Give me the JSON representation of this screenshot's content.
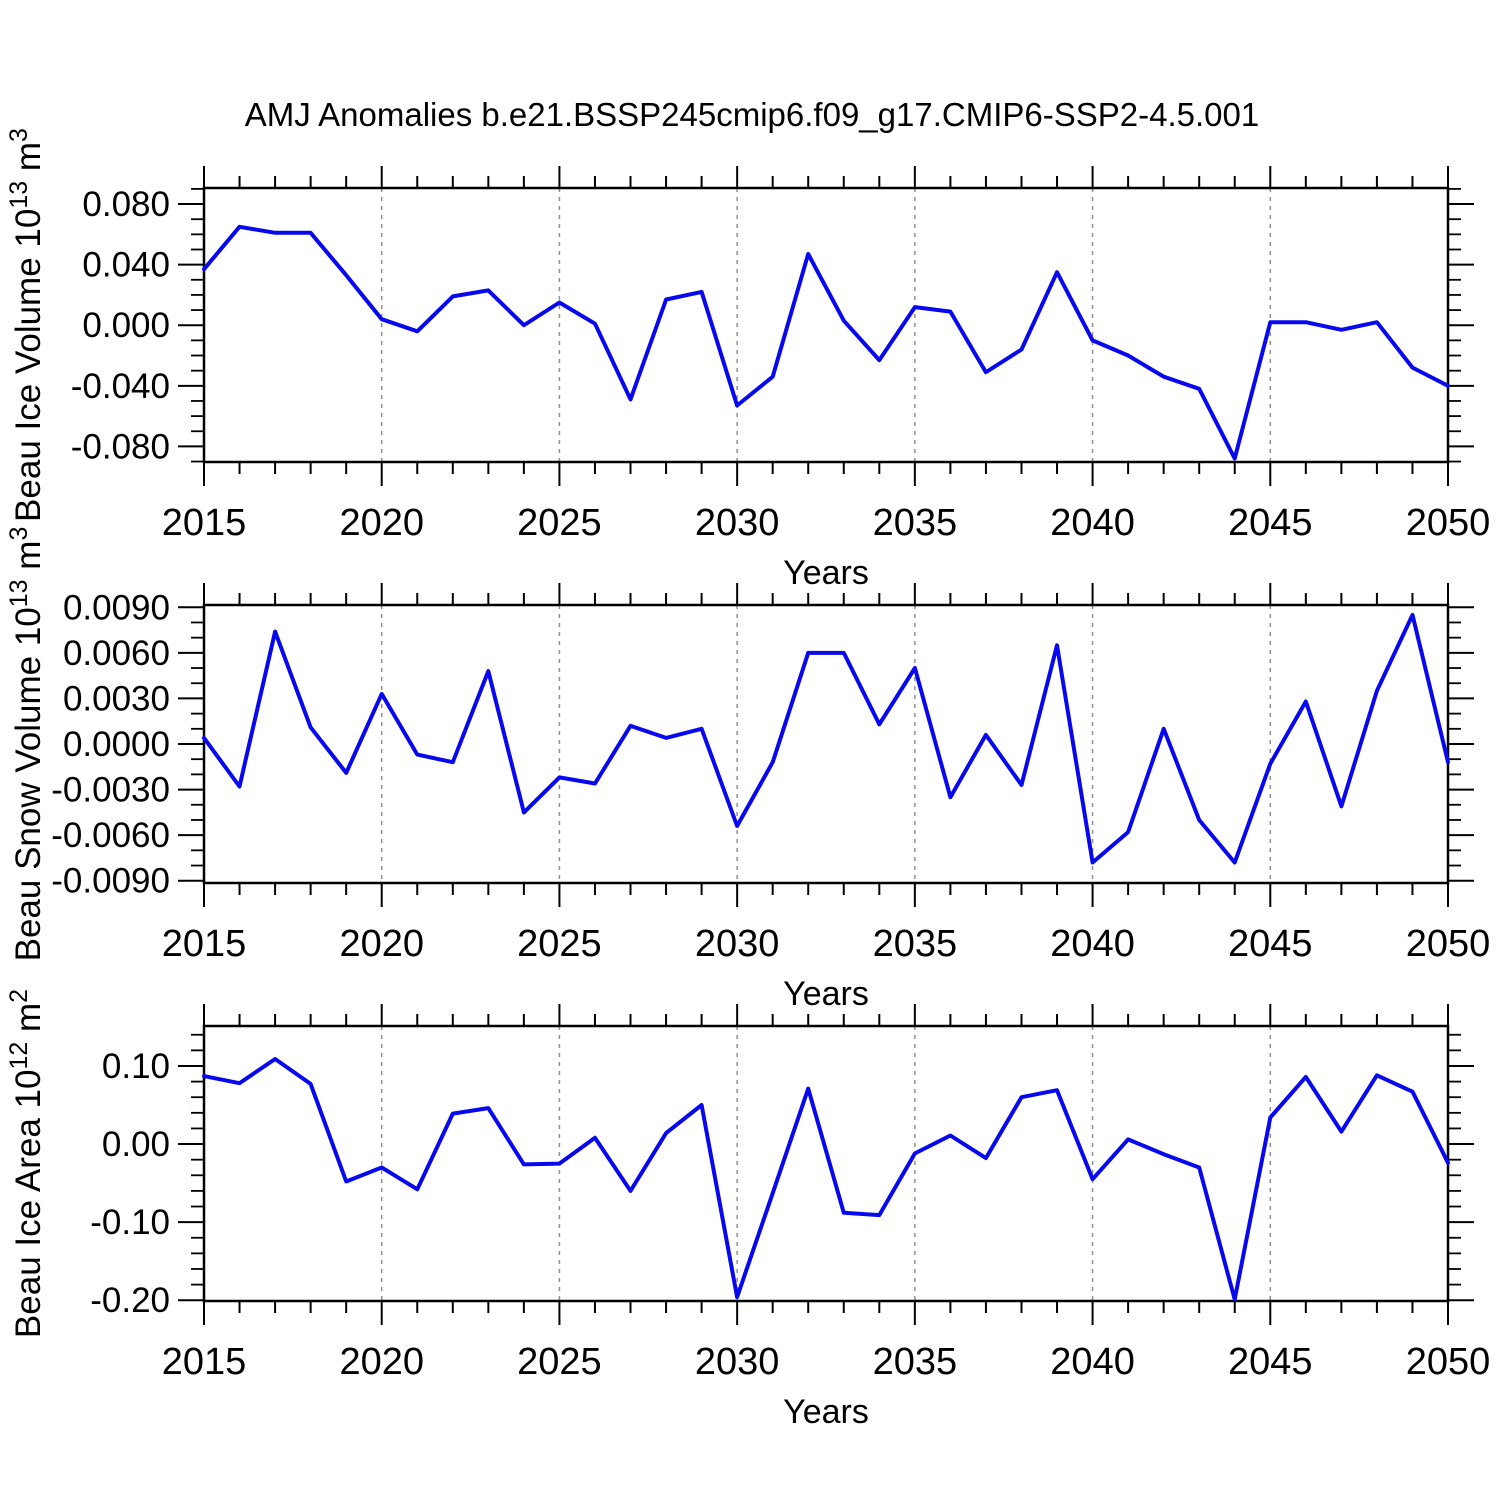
{
  "figure": {
    "title": "AMJ Anomalies b.e21.BSSP245cmip6.f09_g17.CMIP6-SSP2-4.5.001"
  },
  "colors": {
    "line": "#0808ee",
    "grid": "#909090",
    "axis": "#000000",
    "background": "#ffffff"
  },
  "chart_data": [
    {
      "id": "ice-volume",
      "type": "line",
      "title": "",
      "xlabel": "Years",
      "ylabel": "Beau Ice Volume 10^13 m^3",
      "ylabel_parts": [
        {
          "text": "Beau Ice Volume 10"
        },
        {
          "text": "13",
          "sup": true
        },
        {
          "text": " m"
        },
        {
          "text": "3",
          "sup": true
        }
      ],
      "x": [
        2015,
        2016,
        2017,
        2018,
        2019,
        2020,
        2021,
        2022,
        2023,
        2024,
        2025,
        2026,
        2027,
        2028,
        2029,
        2030,
        2031,
        2032,
        2033,
        2034,
        2035,
        2036,
        2037,
        2038,
        2039,
        2040,
        2041,
        2042,
        2043,
        2044,
        2045,
        2046,
        2047,
        2048,
        2049,
        2050
      ],
      "values": [
        0.037,
        0.065,
        0.061,
        0.061,
        0.033,
        0.004,
        -0.004,
        0.019,
        0.023,
        0.0,
        0.015,
        0.001,
        -0.049,
        0.017,
        0.022,
        -0.053,
        -0.034,
        0.047,
        0.003,
        -0.023,
        0.012,
        0.009,
        -0.031,
        -0.016,
        0.035,
        -0.01,
        -0.02,
        -0.034,
        -0.042,
        -0.088,
        0.002,
        0.002,
        -0.003,
        0.002,
        -0.028,
        -0.04
      ],
      "ylim": [
        -0.0903,
        0.0906
      ],
      "ytick_values": [
        0.08,
        0.04,
        0.0,
        -0.04,
        -0.08
      ],
      "ytick_labels": [
        "0.080",
        "0.040",
        "0.000",
        "-0.040",
        "-0.080"
      ],
      "y_minor_step": 0.01,
      "xtick_major_values": [
        2015,
        2020,
        2025,
        2030,
        2035,
        2040,
        2045,
        2050
      ],
      "xtick_labels": [
        "2015",
        "2020",
        "2025",
        "2030",
        "2035",
        "2040",
        "2045",
        "2050"
      ],
      "x_minor_step": 1,
      "grid_x_values": [
        2020,
        2025,
        2030,
        2035,
        2040,
        2045
      ],
      "grid_style": "vertical-dashed"
    },
    {
      "id": "snow-volume",
      "type": "line",
      "title": "",
      "xlabel": "Years",
      "ylabel": "Beau Snow Volume 10^13 m^3",
      "ylabel_parts": [
        {
          "text": "Beau Snow Volume 10"
        },
        {
          "text": "13",
          "sup": true
        },
        {
          "text": " m"
        },
        {
          "text": "3",
          "sup": true
        }
      ],
      "x": [
        2015,
        2016,
        2017,
        2018,
        2019,
        2020,
        2021,
        2022,
        2023,
        2024,
        2025,
        2026,
        2027,
        2028,
        2029,
        2030,
        2031,
        2032,
        2033,
        2034,
        2035,
        2036,
        2037,
        2038,
        2039,
        2040,
        2041,
        2042,
        2043,
        2044,
        2045,
        2046,
        2047,
        2048,
        2049,
        2050
      ],
      "values": [
        0.0004,
        -0.0028,
        0.0074,
        0.0011,
        -0.0019,
        0.0033,
        -0.0007,
        -0.0012,
        0.0048,
        -0.0045,
        -0.0022,
        -0.0026,
        0.0012,
        0.0004,
        0.001,
        -0.0054,
        -0.0012,
        0.006,
        0.006,
        0.0013,
        0.005,
        -0.0035,
        0.0006,
        -0.0027,
        0.0065,
        -0.0078,
        -0.0058,
        0.001,
        -0.005,
        -0.0078,
        -0.0013,
        0.0028,
        -0.0041,
        0.0035,
        0.0085,
        -0.0012
      ],
      "ylim": [
        -0.00915,
        0.00915
      ],
      "ytick_values": [
        0.009,
        0.006,
        0.003,
        0.0,
        -0.003,
        -0.006,
        -0.009
      ],
      "ytick_labels": [
        "0.0090",
        "0.0060",
        "0.0030",
        "0.0000",
        "-0.0030",
        "-0.0060",
        "-0.0090"
      ],
      "y_minor_step": 0.001,
      "xtick_major_values": [
        2015,
        2020,
        2025,
        2030,
        2035,
        2040,
        2045,
        2050
      ],
      "xtick_labels": [
        "2015",
        "2020",
        "2025",
        "2030",
        "2035",
        "2040",
        "2045",
        "2050"
      ],
      "x_minor_step": 1,
      "grid_x_values": [
        2020,
        2025,
        2030,
        2035,
        2040,
        2045
      ],
      "grid_style": "vertical-dashed"
    },
    {
      "id": "ice-area",
      "type": "line",
      "title": "",
      "xlabel": "Years",
      "ylabel": "Beau Ice Area 10^12 m^2",
      "ylabel_parts": [
        {
          "text": "Beau Ice Area 10"
        },
        {
          "text": "12",
          "sup": true
        },
        {
          "text": " m"
        },
        {
          "text": "2",
          "sup": true
        }
      ],
      "x": [
        2015,
        2016,
        2017,
        2018,
        2019,
        2020,
        2021,
        2022,
        2023,
        2024,
        2025,
        2026,
        2027,
        2028,
        2029,
        2030,
        2031,
        2032,
        2033,
        2034,
        2035,
        2036,
        2037,
        2038,
        2039,
        2040,
        2041,
        2042,
        2043,
        2044,
        2045,
        2046,
        2047,
        2048,
        2049,
        2050
      ],
      "values": [
        0.087,
        0.078,
        0.109,
        0.077,
        -0.048,
        -0.03,
        -0.058,
        0.039,
        0.046,
        -0.026,
        -0.025,
        0.008,
        -0.06,
        0.014,
        0.05,
        -0.196,
        -0.063,
        0.071,
        -0.088,
        -0.091,
        -0.012,
        0.011,
        -0.018,
        0.06,
        0.069,
        -0.045,
        0.006,
        -0.013,
        -0.03,
        -0.199,
        0.034,
        0.086,
        0.016,
        0.088,
        0.067,
        -0.024
      ],
      "ylim": [
        -0.201,
        0.1512
      ],
      "ytick_values": [
        0.1,
        0.0,
        -0.1,
        -0.2
      ],
      "ytick_labels": [
        "0.10",
        "0.00",
        "-0.10",
        "-0.20"
      ],
      "y_minor_step": 0.02,
      "xtick_major_values": [
        2015,
        2020,
        2025,
        2030,
        2035,
        2040,
        2045,
        2050
      ],
      "xtick_labels": [
        "2015",
        "2020",
        "2025",
        "2030",
        "2035",
        "2040",
        "2045",
        "2050"
      ],
      "x_minor_step": 1,
      "grid_x_values": [
        2020,
        2025,
        2030,
        2035,
        2040,
        2045
      ],
      "grid_style": "vertical-dashed"
    }
  ]
}
